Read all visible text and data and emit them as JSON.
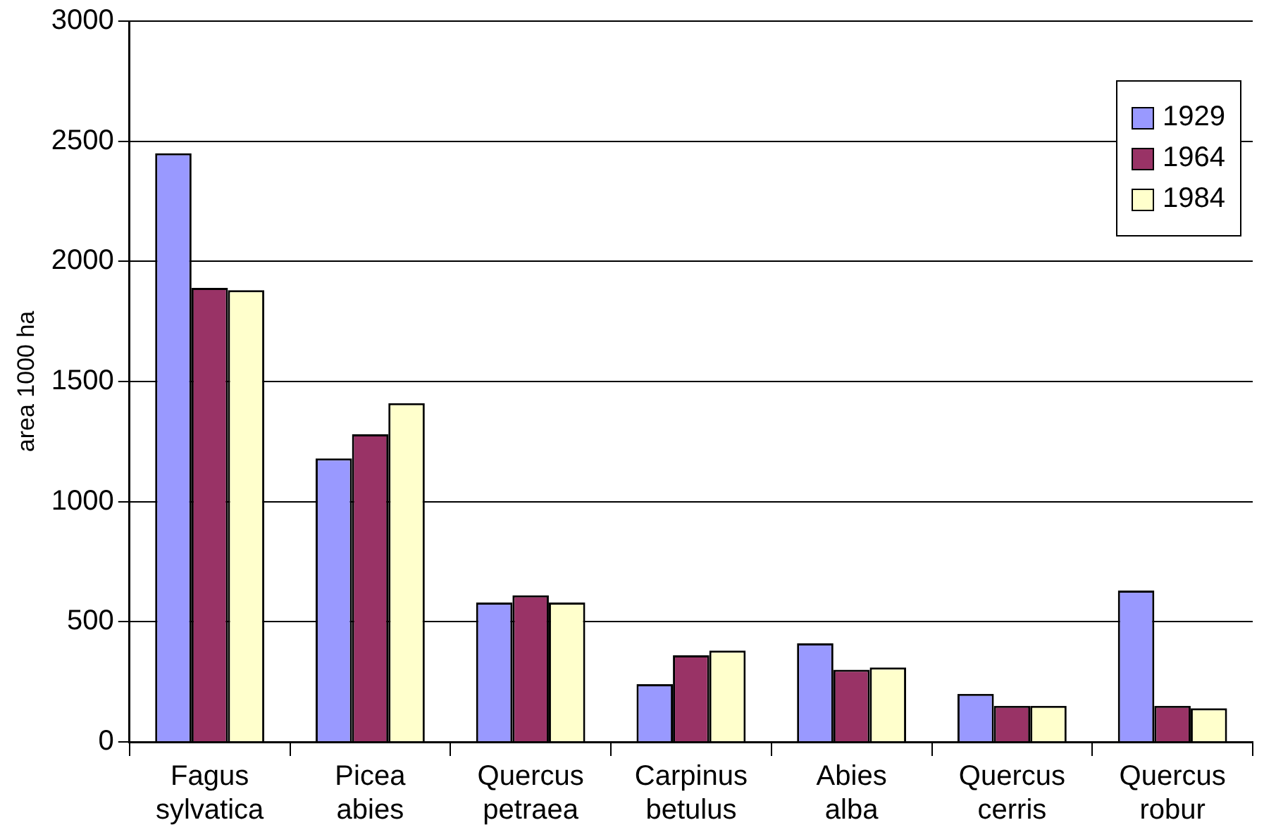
{
  "chart_data": {
    "type": "bar",
    "ylabel": "area 1000 ha",
    "categories": [
      "Fagus sylvatica",
      "Picea abies",
      "Quercus petraea",
      "Carpinus betulus",
      "Abies alba",
      "Quercus cerris",
      "Quercus robur"
    ],
    "series": [
      {
        "name": "1929",
        "color": "#9999ff",
        "values": [
          2450,
          1180,
          580,
          240,
          410,
          200,
          630
        ]
      },
      {
        "name": "1964",
        "color": "#993366",
        "values": [
          1890,
          1280,
          610,
          360,
          300,
          150,
          150
        ]
      },
      {
        "name": "1984",
        "color": "#ffffcc",
        "values": [
          1880,
          1410,
          580,
          380,
          310,
          150,
          140
        ]
      }
    ],
    "ylim": [
      0,
      3000
    ],
    "yticks": [
      0,
      500,
      1000,
      1500,
      2000,
      2500,
      3000
    ],
    "grid": "y",
    "legend": "top right"
  }
}
